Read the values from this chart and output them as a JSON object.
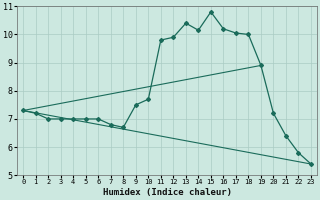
{
  "title": "",
  "xlabel": "Humidex (Indice chaleur)",
  "ylabel": "",
  "bg_color": "#cce8e0",
  "grid_color": "#aaccc4",
  "line_color": "#1a6b5a",
  "marker_color": "#1a6b5a",
  "xlim": [
    -0.5,
    23.5
  ],
  "ylim": [
    5,
    11
  ],
  "xticks": [
    0,
    1,
    2,
    3,
    4,
    5,
    6,
    7,
    8,
    9,
    10,
    11,
    12,
    13,
    14,
    15,
    16,
    17,
    18,
    19,
    20,
    21,
    22,
    23
  ],
  "yticks": [
    5,
    6,
    7,
    8,
    9,
    10,
    11
  ],
  "series": [
    {
      "x": [
        0,
        1,
        2,
        3,
        4,
        5,
        6,
        7,
        8,
        9,
        10,
        11,
        12,
        13,
        14,
        15,
        16,
        17,
        18,
        19,
        20,
        21,
        22,
        23
      ],
      "y": [
        7.3,
        7.2,
        7.0,
        7.0,
        7.0,
        7.0,
        7.0,
        6.8,
        6.7,
        7.5,
        7.7,
        9.8,
        9.9,
        10.4,
        10.15,
        10.8,
        10.2,
        10.05,
        10.0,
        8.9,
        7.2,
        6.4,
        5.8,
        5.4
      ]
    },
    {
      "x": [
        0,
        23
      ],
      "y": [
        7.3,
        5.4
      ]
    },
    {
      "x": [
        0,
        19
      ],
      "y": [
        7.3,
        8.9
      ]
    }
  ]
}
